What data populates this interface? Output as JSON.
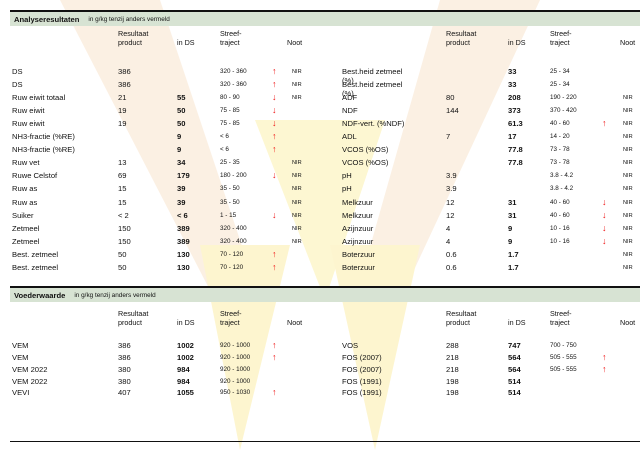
{
  "analysis": {
    "title": "Analyseresultaten",
    "subtitle": "in g/kg tenzij anders vermeld",
    "headers": {
      "resultaat": "Resultaat",
      "product": "product",
      "inds": "in DS",
      "streef": "Streef-",
      "traject": "traject",
      "noot": "Noot"
    },
    "left_rows": [
      {
        "name": "DS",
        "product": "386",
        "inds": "",
        "range": "320 - 360",
        "arrow": "↑",
        "noot": "NIR"
      },
      {
        "name": "DS",
        "product": "386",
        "inds": "",
        "range": "320 - 360",
        "arrow": "↑",
        "noot": "NIR"
      },
      {
        "name": "Ruw eiwit totaal",
        "product": "21",
        "inds": "55",
        "range": "80 - 90",
        "arrow": "↓",
        "noot": "NIR"
      },
      {
        "name": "Ruw eiwit",
        "product": "19",
        "inds": "50",
        "range": "75 - 85",
        "arrow": "↓",
        "noot": ""
      },
      {
        "name": "Ruw eiwit",
        "product": "19",
        "inds": "50",
        "range": "75 - 85",
        "arrow": "↓",
        "noot": ""
      },
      {
        "name": "NH3-fractie (%RE)",
        "product": "",
        "inds": "9",
        "range": "< 6",
        "arrow": "↑",
        "noot": ""
      },
      {
        "name": "NH3-fractie (%RE)",
        "product": "",
        "inds": "9",
        "range": "< 6",
        "arrow": "↑",
        "noot": ""
      },
      {
        "name": "Ruw vet",
        "product": "13",
        "inds": "34",
        "range": "25 - 35",
        "arrow": "",
        "noot": "NIR"
      },
      {
        "name": "Ruwe Celstof",
        "product": "69",
        "inds": "179",
        "range": "180 - 200",
        "arrow": "↓",
        "noot": "NIR"
      },
      {
        "name": "Ruw as",
        "product": "15",
        "inds": "39",
        "range": "35 - 50",
        "arrow": "",
        "noot": "NIR"
      },
      {
        "name": "Ruw as",
        "product": "15",
        "inds": "39",
        "range": "35 - 50",
        "arrow": "",
        "noot": "NIR"
      },
      {
        "name": "Suiker",
        "product": "< 2",
        "inds": "< 6",
        "range": "1 - 15",
        "arrow": "↓",
        "noot": "NIR"
      },
      {
        "name": "Zetmeel",
        "product": "150",
        "inds": "389",
        "range": "320 - 400",
        "arrow": "",
        "noot": "NIR"
      },
      {
        "name": "Zetmeel",
        "product": "150",
        "inds": "389",
        "range": "320 - 400",
        "arrow": "",
        "noot": "NIR"
      },
      {
        "name": "Best. zetmeel",
        "product": "50",
        "inds": "130",
        "range": "70 - 120",
        "arrow": "↑",
        "noot": ""
      },
      {
        "name": "Best. zetmeel",
        "product": "50",
        "inds": "130",
        "range": "70 - 120",
        "arrow": "↑",
        "noot": ""
      }
    ],
    "right_rows": [
      {
        "name": "Best.heid zetmeel",
        "name2": "(%)",
        "product": "",
        "inds": "33",
        "range": "25 - 34",
        "arrow": "",
        "noot": ""
      },
      {
        "name": "Best.heid zetmeel",
        "name2": "(%)",
        "product": "",
        "inds": "33",
        "range": "25 - 34",
        "arrow": "",
        "noot": ""
      },
      {
        "name": "ADF",
        "name2": "",
        "product": "80",
        "inds": "208",
        "range": "190 - 220",
        "arrow": "",
        "noot": "NIR"
      },
      {
        "name": "NDF",
        "name2": "",
        "product": "144",
        "inds": "373",
        "range": "370 - 420",
        "arrow": "",
        "noot": "NIR"
      },
      {
        "name": "NDF-vert. (%NDF)",
        "name2": "",
        "product": "",
        "inds": "61.3",
        "range": "40 - 60",
        "arrow": "↑",
        "noot": "NIR"
      },
      {
        "name": "ADL",
        "name2": "",
        "product": "7",
        "inds": "17",
        "range": "14 - 20",
        "arrow": "",
        "noot": "NIR"
      },
      {
        "name": "VCOS (%OS)",
        "name2": "",
        "product": "",
        "inds": "77.8",
        "range": "73 - 78",
        "arrow": "",
        "noot": "NIR"
      },
      {
        "name": "VCOS (%OS)",
        "name2": "",
        "product": "",
        "inds": "77.8",
        "range": "73 - 78",
        "arrow": "",
        "noot": "NIR"
      },
      {
        "name": "pH",
        "name2": "",
        "product": "3.9",
        "inds": "",
        "range": "3.8 - 4.2",
        "arrow": "",
        "noot": "NIR"
      },
      {
        "name": "pH",
        "name2": "",
        "product": "3.9",
        "inds": "",
        "range": "3.8 - 4.2",
        "arrow": "",
        "noot": "NIR"
      },
      {
        "name": "Melkzuur",
        "name2": "",
        "product": "12",
        "inds": "31",
        "range": "40 - 60",
        "arrow": "↓",
        "noot": "NIR"
      },
      {
        "name": "Melkzuur",
        "name2": "",
        "product": "12",
        "inds": "31",
        "range": "40 - 60",
        "arrow": "↓",
        "noot": "NIR"
      },
      {
        "name": "Azijnzuur",
        "name2": "",
        "product": "4",
        "inds": "9",
        "range": "10 - 16",
        "arrow": "↓",
        "noot": "NIR"
      },
      {
        "name": "Azijnzuur",
        "name2": "",
        "product": "4",
        "inds": "9",
        "range": "10 - 16",
        "arrow": "↓",
        "noot": "NIR"
      },
      {
        "name": "Boterzuur",
        "name2": "",
        "product": "0.6",
        "inds": "1.7",
        "range": "",
        "arrow": "",
        "noot": "NIR"
      },
      {
        "name": "Boterzuur",
        "name2": "",
        "product": "0.6",
        "inds": "1.7",
        "range": "",
        "arrow": "",
        "noot": "NIR"
      }
    ]
  },
  "feed": {
    "title": "Voederwaarde",
    "subtitle": "in g/kg tenzij anders vermeld",
    "left_rows": [
      {
        "name": "VEM",
        "product": "386",
        "inds": "1002",
        "range": "920 - 1000",
        "arrow": "↑"
      },
      {
        "name": "VEM",
        "product": "386",
        "inds": "1002",
        "range": "920 - 1000",
        "arrow": "↑"
      },
      {
        "name": "VEM 2022",
        "product": "380",
        "inds": "984",
        "range": "920 - 1000",
        "arrow": ""
      },
      {
        "name": "VEM 2022",
        "product": "380",
        "inds": "984",
        "range": "920 - 1000",
        "arrow": ""
      },
      {
        "name": "VEVI",
        "product": "407",
        "inds": "1055",
        "range": "950 - 1030",
        "arrow": "↑"
      }
    ],
    "right_rows": [
      {
        "name": "VOS",
        "product": "288",
        "inds": "747",
        "range": "700 - 750",
        "arrow": ""
      },
      {
        "name": "FOS (2007)",
        "product": "218",
        "inds": "564",
        "range": "505 - 555",
        "arrow": "↑"
      },
      {
        "name": "FOS (2007)",
        "product": "218",
        "inds": "564",
        "range": "505 - 555",
        "arrow": "↑"
      },
      {
        "name": "FOS (1991)",
        "product": "198",
        "inds": "514",
        "range": "",
        "arrow": ""
      },
      {
        "name": "FOS (1991)",
        "product": "198",
        "inds": "514",
        "range": "",
        "arrow": ""
      }
    ]
  }
}
